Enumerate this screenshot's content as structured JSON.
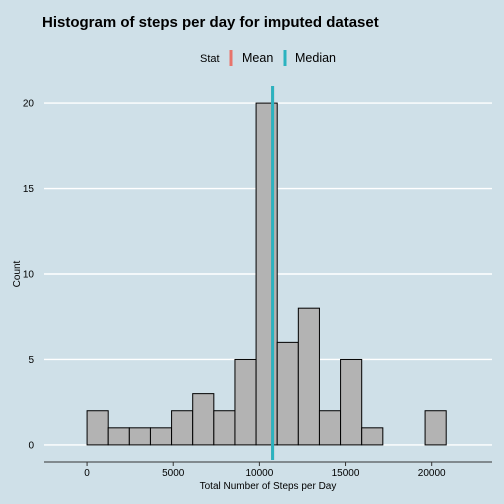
{
  "chart_data": {
    "type": "bar",
    "title": "Histogram of steps per day for imputed dataset",
    "xlabel": "Total Number of Steps per Day",
    "ylabel": "Count",
    "bin_width": 1226,
    "bins": [
      {
        "start": -1226,
        "count": 0
      },
      {
        "start": 0,
        "count": 2
      },
      {
        "start": 1226,
        "count": 1
      },
      {
        "start": 2452,
        "count": 1
      },
      {
        "start": 3678,
        "count": 1
      },
      {
        "start": 4904,
        "count": 2
      },
      {
        "start": 6130,
        "count": 3
      },
      {
        "start": 7356,
        "count": 2
      },
      {
        "start": 8582,
        "count": 5
      },
      {
        "start": 9808,
        "count": 20
      },
      {
        "start": 11034,
        "count": 6
      },
      {
        "start": 12260,
        "count": 8
      },
      {
        "start": 13486,
        "count": 2
      },
      {
        "start": 14712,
        "count": 5
      },
      {
        "start": 15938,
        "count": 1
      },
      {
        "start": 17164,
        "count": 0
      },
      {
        "start": 18390,
        "count": 0
      },
      {
        "start": 19616,
        "count": 2
      },
      {
        "start": 20842,
        "count": 0
      }
    ],
    "x_ticks": [
      0,
      5000,
      10000,
      15000,
      20000
    ],
    "x_tick_labels": [
      "0",
      "5000",
      "10000",
      "15000",
      "20000"
    ],
    "y_ticks": [
      0,
      5,
      10,
      15,
      20
    ],
    "y_tick_labels": [
      "0",
      "5",
      "10",
      "15",
      "20"
    ],
    "xlim": [
      -2500,
      23500
    ],
    "ylim": [
      -1,
      21
    ],
    "grid": "horizontal",
    "legend": {
      "title": "Stat",
      "position": "top",
      "items": [
        {
          "label": "Mean",
          "color": "#e8746b"
        },
        {
          "label": "Median",
          "color": "#2bb3c0"
        }
      ]
    },
    "vlines": [
      {
        "stat": "Mean",
        "value": 10766,
        "color": "#e8746b"
      },
      {
        "stat": "Median",
        "value": 10766,
        "color": "#2bb3c0"
      }
    ],
    "colors": {
      "background": "#cfe0e8",
      "bar_fill": "#b3b3b3",
      "bar_stroke": "#000000",
      "grid": "#ffffff"
    }
  }
}
